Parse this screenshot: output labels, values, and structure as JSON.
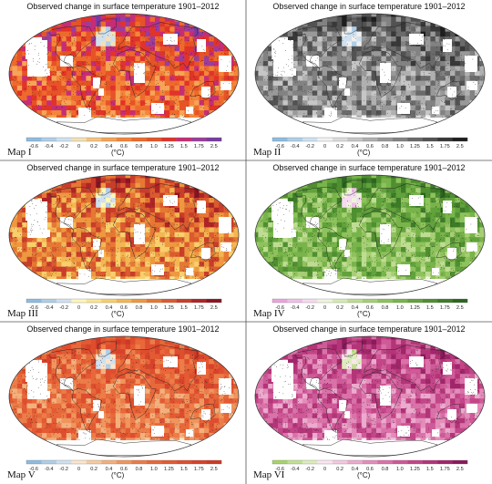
{
  "panels": [
    {
      "title": "Observed change in surface temperature 1901–2012",
      "label": "Map I",
      "unit": "(°C)",
      "colors": [
        "#8fbce0",
        "#afcfe8",
        "#cfe1f0",
        "#f4e0b6",
        "#f6c27e",
        "#f6a456",
        "#f4853a",
        "#ee6a2c",
        "#e65326",
        "#e2332a",
        "#c72d76",
        "#9c3c9c",
        "#7a3aa2"
      ]
    },
    {
      "title": "Observed change in surface temperature 1901–2012",
      "label": "Map II",
      "unit": "(°C)",
      "colors": [
        "#8fbce0",
        "#afcfe8",
        "#cfe1f0",
        "#f1f1f1",
        "#dcdcdc",
        "#c6c6c6",
        "#b0b0b0",
        "#999999",
        "#828282",
        "#6a6a6a",
        "#525252",
        "#383838",
        "#1e1e1e"
      ]
    },
    {
      "title": "Observed change in surface temperature 1901–2012",
      "label": "Map III",
      "unit": "(°C)",
      "colors": [
        "#8fbce0",
        "#afcfe8",
        "#cfe1f0",
        "#fff6b8",
        "#fbe58e",
        "#f8cf6c",
        "#f4b653",
        "#ee9840",
        "#e67834",
        "#db5a2e",
        "#c93d2a",
        "#ae2426",
        "#8c1422"
      ]
    },
    {
      "title": "Observed change in surface temperature 1901–2012",
      "label": "Map IV",
      "unit": "(°C)",
      "colors": [
        "#eaa6dc",
        "#f0c0e6",
        "#f6daf0",
        "#eef5dc",
        "#d6ebb4",
        "#bedd92",
        "#a6cf74",
        "#8ec25c",
        "#78b44a",
        "#62a23c",
        "#4f8f31",
        "#3d7b28",
        "#2c6620"
      ]
    },
    {
      "title": "Observed change in surface temperature 1901–2012",
      "label": "Map V",
      "unit": "(°C)",
      "colors": [
        "#8fbce0",
        "#afcfe8",
        "#cfe1f0",
        "#fbe5cc",
        "#f7caa0",
        "#f4b07c",
        "#f0955e",
        "#ec7c48",
        "#e8683a",
        "#e35a33",
        "#de4e2e",
        "#d6432a",
        "#cc3a26"
      ]
    },
    {
      "title": "Observed change in surface temperature 1901–2012",
      "label": "Map VI",
      "unit": "(°C)",
      "colors": [
        "#a8d36a",
        "#c2e091",
        "#dcedbb",
        "#fbe6f0",
        "#f4c8df",
        "#ecaacd",
        "#e48dbb",
        "#da72a9",
        "#cf5a98",
        "#c24688",
        "#b33578",
        "#a0266a",
        "#8a1a5c"
      ]
    }
  ],
  "scale_ticks": [
    "-0.6",
    "-0.4",
    "-0.2",
    "0",
    "0.2",
    "0.4",
    "0.6",
    "0.8",
    "1.0",
    "1.25",
    "1.5",
    "1.75",
    "2.5"
  ]
}
